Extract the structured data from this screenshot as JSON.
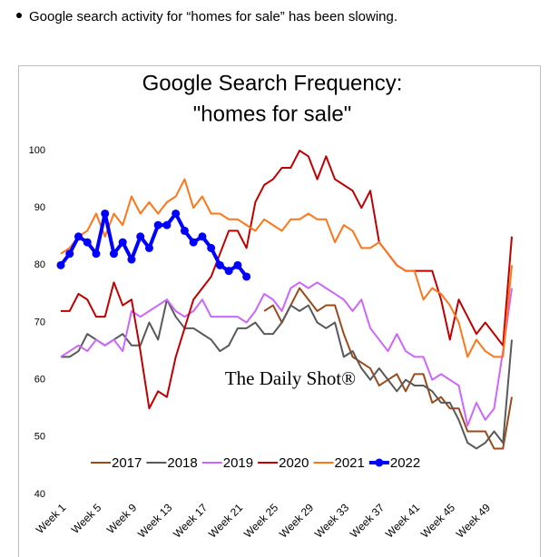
{
  "note": "Google search activity for “homes for sale” has been slowing.",
  "chart_data": {
    "type": "line",
    "title": [
      "Google Search Frequency:",
      "\"homes for sale\""
    ],
    "watermark": "The Daily Shot®",
    "categories": [
      "Week 1",
      null,
      null,
      null,
      "Week 5",
      null,
      null,
      null,
      "Week 9",
      null,
      null,
      null,
      "Week 13",
      null,
      null,
      null,
      "Week 17",
      null,
      null,
      null,
      "Week 21",
      null,
      null,
      null,
      "Week 25",
      null,
      null,
      null,
      "Week 29",
      null,
      null,
      null,
      "Week 33",
      null,
      null,
      null,
      "Week 37",
      null,
      null,
      null,
      "Week 41",
      null,
      null,
      null,
      "Week 45",
      null,
      null,
      null,
      "Week 49",
      null,
      null,
      null
    ],
    "ylim": [
      40,
      100
    ],
    "yticks": [
      40,
      50,
      60,
      70,
      80,
      90,
      100
    ],
    "grid": false,
    "legend": "bottom",
    "series": [
      {
        "name": "2017",
        "color": "#9c4a1a",
        "values": [
          null,
          null,
          null,
          null,
          null,
          null,
          null,
          null,
          null,
          null,
          null,
          null,
          null,
          null,
          null,
          null,
          null,
          null,
          null,
          null,
          null,
          null,
          null,
          72,
          73,
          70,
          73,
          76,
          74,
          72,
          73,
          73,
          68,
          64,
          63,
          62,
          59,
          60,
          61,
          58,
          61,
          61,
          56,
          57,
          55,
          55,
          51,
          51,
          51,
          48,
          48,
          57
        ]
      },
      {
        "name": "2018",
        "color": "#595959",
        "values": [
          64,
          64,
          65,
          68,
          67,
          66,
          67,
          68,
          66,
          66,
          70,
          67,
          74,
          71,
          69,
          69,
          68,
          67,
          65,
          66,
          69,
          69,
          70,
          68,
          68,
          70,
          73,
          72,
          73,
          70,
          69,
          70,
          64,
          65,
          62,
          60,
          62,
          60,
          58,
          60,
          59,
          59,
          58,
          56,
          56,
          53,
          49,
          48,
          49,
          51,
          49,
          67
        ]
      },
      {
        "name": "2019",
        "color": "#cc66ff",
        "values": [
          64,
          65,
          66,
          65,
          67,
          66,
          67,
          65,
          72,
          71,
          72,
          73,
          74,
          72,
          71,
          72,
          74,
          71,
          71,
          71,
          71,
          70,
          72,
          75,
          74,
          72,
          76,
          77,
          76,
          77,
          76,
          75,
          74,
          72,
          74,
          69,
          67,
          65,
          68,
          65,
          64,
          64,
          60,
          61,
          60,
          59,
          52,
          56,
          53,
          55,
          65,
          76
        ]
      },
      {
        "name": "2020",
        "color": "#c00000",
        "values": [
          72,
          72,
          75,
          74,
          71,
          71,
          77,
          73,
          74,
          65,
          55,
          58,
          57,
          64,
          69,
          74,
          76,
          78,
          82,
          86,
          86,
          83,
          91,
          94,
          95,
          97,
          97,
          100,
          99,
          95,
          99,
          95,
          94,
          93,
          90,
          93,
          84,
          82,
          80,
          79,
          79,
          79,
          79,
          74,
          67,
          74,
          71,
          68,
          70,
          68,
          66,
          85
        ]
      },
      {
        "name": "2021",
        "color": "#ff7518",
        "values": [
          82,
          83,
          85,
          86,
          89,
          85,
          89,
          87,
          92,
          89,
          91,
          89,
          91,
          92,
          95,
          90,
          92,
          89,
          89,
          88,
          88,
          87,
          86,
          88,
          87,
          86,
          88,
          88,
          89,
          88,
          88,
          84,
          87,
          86,
          83,
          83,
          84,
          82,
          80,
          79,
          79,
          74,
          76,
          75,
          73,
          70,
          64,
          67,
          65,
          64,
          64,
          80
        ]
      },
      {
        "name": "2022",
        "color": "#0000ff",
        "marker": "circle",
        "values": [
          80,
          82,
          85,
          84,
          82,
          89,
          82,
          84,
          81,
          85,
          83,
          87,
          87,
          89,
          86,
          84,
          85,
          83,
          80,
          79,
          80,
          78,
          null,
          null,
          null,
          null,
          null,
          null,
          null,
          null,
          null,
          null,
          null,
          null,
          null,
          null,
          null,
          null,
          null,
          null,
          null,
          null,
          null,
          null,
          null,
          null,
          null,
          null,
          null,
          null,
          null,
          null
        ]
      }
    ]
  }
}
